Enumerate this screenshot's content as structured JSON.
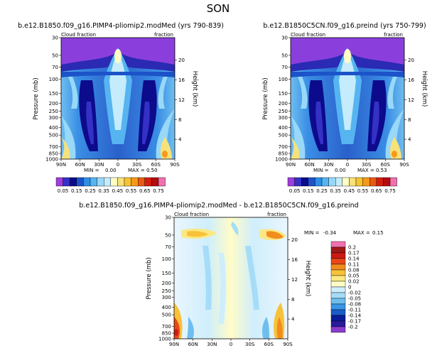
{
  "figure_title": "SON",
  "chart_data": [
    {
      "type": "heatmap",
      "panel": "left",
      "title": "b.e12.B1850.f09_g16.PIMP4-pliomip2.modMed (yrs 790-839)",
      "left_string": "Cloud fraction",
      "right_string": "fraction",
      "ylabel": "Pressure (mb)",
      "ylabel_right": "Height (km)",
      "x_ticks": [
        "90N",
        "60N",
        "30N",
        "0",
        "30S",
        "60S",
        "90S"
      ],
      "y_ticks": [
        "30",
        "50",
        "70",
        "100",
        "150",
        "200",
        "250",
        "300",
        "400",
        "500",
        "700",
        "850",
        "1000"
      ],
      "height_ticks": [
        "20",
        "16",
        "12",
        "8",
        "4"
      ],
      "min_label": "MIN =",
      "min_value": "0.00",
      "max_label": "MAX =",
      "max_value": "0.50",
      "ylim": [
        1000,
        30
      ],
      "xlim": [
        90,
        -90
      ]
    },
    {
      "type": "heatmap",
      "panel": "right",
      "title": "b.e12.B1850C5CN.f09_g16.preind (yrs 750-799)",
      "left_string": "Cloud fraction",
      "right_string": "fraction",
      "ylabel": "Pressure (mb)",
      "ylabel_right": "Height (km)",
      "x_ticks": [
        "90N",
        "60N",
        "30N",
        "0",
        "30S",
        "60S",
        "90S"
      ],
      "y_ticks": [
        "30",
        "50",
        "70",
        "100",
        "150",
        "200",
        "250",
        "300",
        "400",
        "500",
        "700",
        "850",
        "1000"
      ],
      "height_ticks": [
        "20",
        "16",
        "12",
        "8",
        "4"
      ],
      "min_label": "MIN =",
      "min_value": "0.00",
      "max_label": "MAX =",
      "max_value": "0.53",
      "ylim": [
        1000,
        30
      ],
      "xlim": [
        90,
        -90
      ]
    },
    {
      "type": "heatmap",
      "panel": "difference",
      "title": "b.e12.B1850.f09_g16.PIMP4-pliomip2.modMed - b.e12.B1850C5CN.f09_g16.preind",
      "left_string": "Cloud fraction",
      "right_string": "fraction",
      "ylabel": "Pressure (mb)",
      "ylabel_right": "Height (km)",
      "x_ticks": [
        "90N",
        "60N",
        "30N",
        "0",
        "30S",
        "60S",
        "90S"
      ],
      "y_ticks": [
        "30",
        "50",
        "70",
        "100",
        "150",
        "200",
        "250",
        "300",
        "400",
        "500",
        "700",
        "850",
        "1000"
      ],
      "height_ticks": [
        "20",
        "16",
        "12",
        "8",
        "4"
      ],
      "min_label": "MIN =",
      "min_value": "-0.34",
      "max_label": "MAX =",
      "max_value": "0.15",
      "ylim": [
        1000,
        30
      ],
      "xlim": [
        90,
        -90
      ]
    }
  ],
  "top_colorbar": {
    "labels": [
      "0.05",
      "0.15",
      "0.25",
      "0.35",
      "0.45",
      "0.55",
      "0.65",
      "0.75"
    ],
    "colors": [
      "#9d3ee0",
      "#3530c6",
      "#0b0b8c",
      "#1c53c8",
      "#2e8fe6",
      "#56b4f0",
      "#98d8f8",
      "#c4ecfc",
      "#fffcc4",
      "#f7e27a",
      "#f7c332",
      "#f79918",
      "#e85a12",
      "#d41c10",
      "#b40c0c",
      "#f070b0"
    ]
  },
  "diff_colorbar": {
    "labels": [
      "0.2",
      "0.17",
      "0.14",
      "0.11",
      "0.08",
      "0.05",
      "0.02",
      "0",
      "-0.02",
      "-0.05",
      "-0.08",
      "-0.11",
      "-0.14",
      "-0.17",
      "-0.2"
    ],
    "colors": [
      "#f070b0",
      "#a01818",
      "#cc1a12",
      "#e8481a",
      "#f28c1e",
      "#f7c23a",
      "#fbe884",
      "#fffcc8",
      "#cfeefc",
      "#a6dcf7",
      "#6fbef0",
      "#3a96e6",
      "#1a5cc8",
      "#0b1c9a",
      "#2a1a9c",
      "#8a3ccc"
    ]
  }
}
